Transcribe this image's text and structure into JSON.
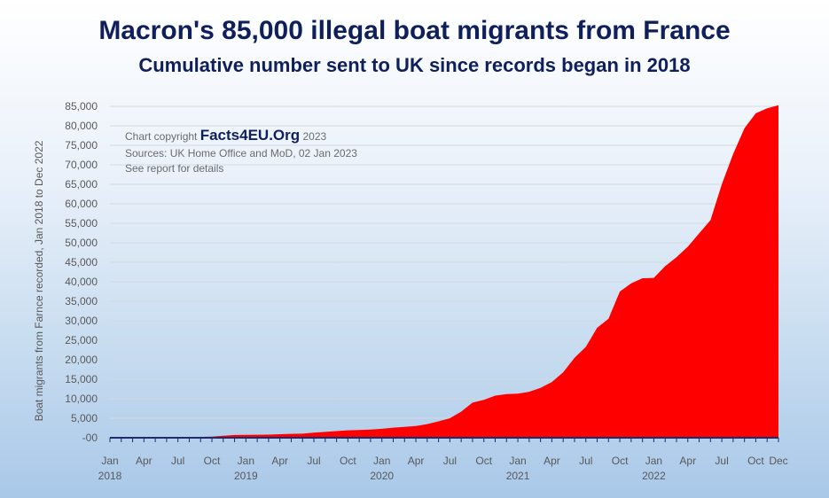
{
  "chart_data": {
    "type": "area",
    "title": "Macron's 85,000 illegal boat migrants from France",
    "subtitle": "Cumulative number sent to UK since records began in 2018",
    "ylabel": "Boat migrants from Farnce recorded, Jan 2018 to Dec 2022",
    "ylim": [
      0,
      85000
    ],
    "grid": true,
    "y_ticks": [
      "85,000",
      "80,000",
      "75,000",
      "70,000",
      "65,000",
      "60,000",
      "55,000",
      "50,000",
      "45,000",
      "40,000",
      "35,000",
      "30,000",
      "25,000",
      "20,000",
      "15,000",
      "10,000",
      "5,000",
      "-00"
    ],
    "x_ticks": [
      {
        "month": "Jan",
        "year": "2018",
        "x": "2018-01"
      },
      {
        "month": "Apr",
        "year": "",
        "x": "2018-04"
      },
      {
        "month": "Jul",
        "year": "",
        "x": "2018-07"
      },
      {
        "month": "Oct",
        "year": "",
        "x": "2018-10"
      },
      {
        "month": "Jan",
        "year": "2019",
        "x": "2019-01"
      },
      {
        "month": "Apr",
        "year": "",
        "x": "2019-04"
      },
      {
        "month": "Jul",
        "year": "",
        "x": "2019-07"
      },
      {
        "month": "Oct",
        "year": "",
        "x": "2019-10"
      },
      {
        "month": "Jan",
        "year": "2020",
        "x": "2020-01"
      },
      {
        "month": "Apr",
        "year": "",
        "x": "2020-04"
      },
      {
        "month": "Jul",
        "year": "",
        "x": "2020-07"
      },
      {
        "month": "Oct",
        "year": "",
        "x": "2020-10"
      },
      {
        "month": "Jan",
        "year": "2021",
        "x": "2021-01"
      },
      {
        "month": "Apr",
        "year": "",
        "x": "2021-04"
      },
      {
        "month": "Jul",
        "year": "",
        "x": "2021-07"
      },
      {
        "month": "Oct",
        "year": "",
        "x": "2021-10"
      },
      {
        "month": "Jan",
        "year": "2022",
        "x": "2022-01"
      },
      {
        "month": "Apr",
        "year": "",
        "x": "2022-04"
      },
      {
        "month": "Jul",
        "year": "",
        "x": "2022-07"
      },
      {
        "month": "Oct",
        "year": "",
        "x": "2022-10"
      },
      {
        "month": "Dec",
        "year": "",
        "x": "2022-12"
      }
    ],
    "series": [
      {
        "color": "#ff0000",
        "x": [
          "2018-01",
          "2018-02",
          "2018-03",
          "2018-04",
          "2018-05",
          "2018-06",
          "2018-07",
          "2018-08",
          "2018-09",
          "2018-10",
          "2018-11",
          "2018-12",
          "2019-01",
          "2019-02",
          "2019-03",
          "2019-04",
          "2019-05",
          "2019-06",
          "2019-07",
          "2019-08",
          "2019-09",
          "2019-10",
          "2019-11",
          "2019-12",
          "2020-01",
          "2020-02",
          "2020-03",
          "2020-04",
          "2020-05",
          "2020-06",
          "2020-07",
          "2020-08",
          "2020-09",
          "2020-10",
          "2020-11",
          "2020-12",
          "2021-01",
          "2021-02",
          "2021-03",
          "2021-04",
          "2021-05",
          "2021-06",
          "2021-07",
          "2021-08",
          "2021-09",
          "2021-10",
          "2021-11",
          "2021-12",
          "2022-01",
          "2022-02",
          "2022-03",
          "2022-04",
          "2022-05",
          "2022-06",
          "2022-07",
          "2022-08",
          "2022-09",
          "2022-10",
          "2022-11",
          "2022-12"
        ],
        "values": [
          20,
          40,
          60,
          80,
          100,
          120,
          150,
          180,
          220,
          300,
          500,
          700,
          750,
          780,
          800,
          900,
          1000,
          1050,
          1300,
          1500,
          1700,
          1900,
          2000,
          2100,
          2300,
          2600,
          2800,
          3000,
          3500,
          4200,
          5000,
          6700,
          9000,
          9700,
          10800,
          11200,
          11300,
          11800,
          12800,
          14300,
          16800,
          20500,
          23300,
          28200,
          30500,
          37500,
          39600,
          40900,
          41000,
          44000,
          46300,
          49000,
          52400,
          55800,
          65000,
          72800,
          79400,
          83200,
          84500,
          85300
        ]
      }
    ],
    "annotations": {
      "copyright_prefix": "Chart copyright",
      "brand": "Facts4EU.Org",
      "copyright_year": "2023",
      "sources": "Sources: UK Home Office and MoD, 02 Jan 2023",
      "report": "See report for details"
    }
  }
}
